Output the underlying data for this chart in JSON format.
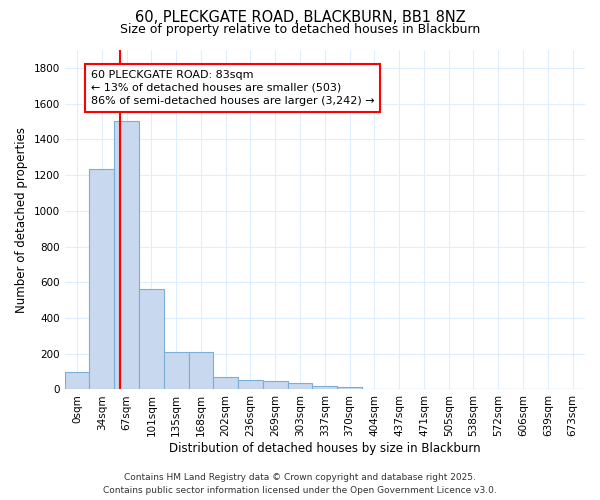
{
  "title_line1": "60, PLECKGATE ROAD, BLACKBURN, BB1 8NZ",
  "title_line2": "Size of property relative to detached houses in Blackburn",
  "xlabel": "Distribution of detached houses by size in Blackburn",
  "ylabel": "Number of detached properties",
  "bar_fill_color": "#c8d8ee",
  "bar_edge_color": "#7bafd4",
  "categories": [
    "0sqm",
    "34sqm",
    "67sqm",
    "101sqm",
    "135sqm",
    "168sqm",
    "202sqm",
    "236sqm",
    "269sqm",
    "303sqm",
    "337sqm",
    "370sqm",
    "404sqm",
    "437sqm",
    "471sqm",
    "505sqm",
    "538sqm",
    "572sqm",
    "606sqm",
    "639sqm",
    "673sqm"
  ],
  "values": [
    95,
    1235,
    1500,
    560,
    210,
    210,
    70,
    55,
    45,
    35,
    22,
    15,
    5,
    2,
    1,
    1,
    0,
    0,
    0,
    0,
    0
  ],
  "ylim": [
    0,
    1900
  ],
  "yticks": [
    0,
    200,
    400,
    600,
    800,
    1000,
    1200,
    1400,
    1600,
    1800
  ],
  "red_line_x": 1.75,
  "annotation_text": "60 PLECKGATE ROAD: 83sqm\n← 13% of detached houses are smaller (503)\n86% of semi-detached houses are larger (3,242) →",
  "footer_line1": "Contains HM Land Registry data © Crown copyright and database right 2025.",
  "footer_line2": "Contains public sector information licensed under the Open Government Licence v3.0.",
  "background_color": "#ffffff",
  "plot_bg_color": "#ffffff",
  "grid_color": "#ddeeff",
  "title_fontsize": 10.5,
  "subtitle_fontsize": 9,
  "axis_label_fontsize": 8.5,
  "tick_fontsize": 7.5,
  "annotation_fontsize": 8,
  "footer_fontsize": 6.5
}
